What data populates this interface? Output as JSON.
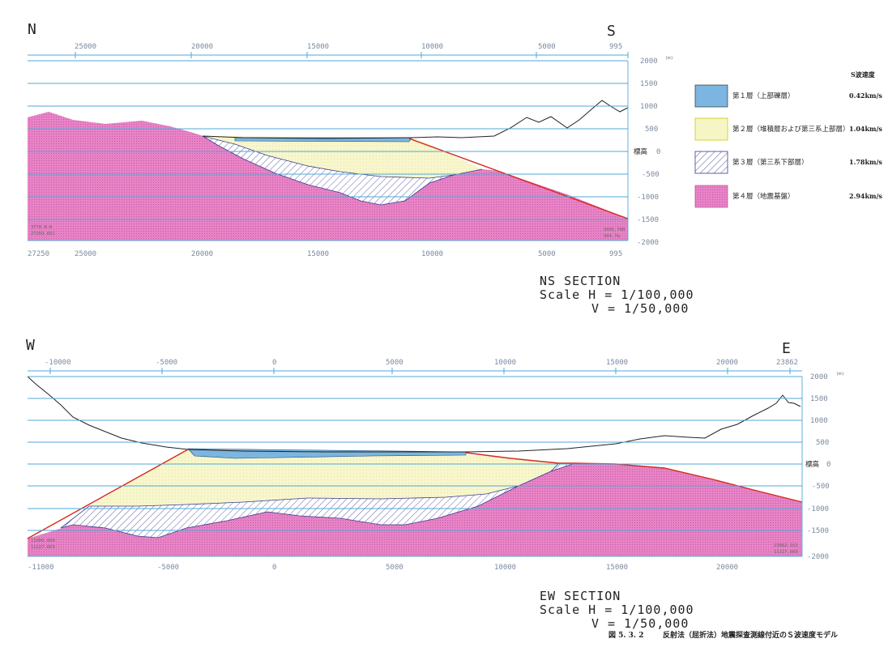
{
  "ns_section": {
    "dir_left": "N",
    "dir_right": "S",
    "top_ticks": [
      "25000",
      "20000",
      "15000",
      "10000",
      "5000",
      "995"
    ],
    "bottom_ticks": [
      "27250",
      "25000",
      "20000",
      "15000",
      "10000",
      "5000",
      "995"
    ],
    "elev_ticks": [
      "2000",
      "1500",
      "1000",
      "500",
      "0",
      "-500",
      "-1000",
      "-1500",
      "-2000"
    ],
    "unit": "(m)",
    "elev_label": "標高",
    "corner_left": [
      "3770.8-6",
      "27263.601"
    ],
    "corner_right": [
      "9905.780",
      "994.7m"
    ],
    "title": "NS SECTION",
    "scale_h": "Scale H = 1/100,000",
    "scale_v": "V = 1/50,000"
  },
  "ew_section": {
    "dir_left": "W",
    "dir_right": "E",
    "top_ticks": [
      "-10000",
      "-5000",
      "0",
      "5000",
      "10000",
      "15000",
      "20000",
      "23862"
    ],
    "bottom_ticks": [
      "-11000",
      "-5000",
      "0",
      "5000",
      "10000",
      "15000",
      "20000"
    ],
    "elev_ticks": [
      "2000",
      "1500",
      "1000",
      "500",
      "0",
      "-500",
      "-1000",
      "-1500",
      "-2000"
    ],
    "unit": "(m)",
    "elev_label": "標高",
    "corner_left": [
      "11000.000",
      "11227.669"
    ],
    "corner_right": [
      "23862.161",
      "11227.669"
    ],
    "title": "EW SECTION",
    "scale_h": "Scale H = 1/100,000",
    "scale_v": "V = 1/50,000"
  },
  "legend": {
    "header": "S波速度",
    "items": [
      {
        "label": "第１層（上部礫層）",
        "value": "0.42km/s",
        "color": "#7ab6e0"
      },
      {
        "label": "第２層（堆積層および第三系上部層）",
        "value": "1.04km/s",
        "color": "#f6f5c6"
      },
      {
        "label": "第３層（第三系下部層）",
        "value": "1.78km/s",
        "color": "#ffffff"
      },
      {
        "label": "第４層（地震基盤）",
        "value": "2.94km/s",
        "color": "#e27cc0"
      }
    ]
  },
  "caption": {
    "number": "図 5. 3. 2",
    "text": "反射法（屈折法）地震探査測線付近のＳ波速度モデル"
  },
  "colors": {
    "grid": "#4fa8d8",
    "boundary": "#d32a1e",
    "layer1": "#7ab6e0",
    "layer2": "#f6f5c6",
    "layer3_hatch": "#3a3a90",
    "layer4": "#e27cc0"
  }
}
